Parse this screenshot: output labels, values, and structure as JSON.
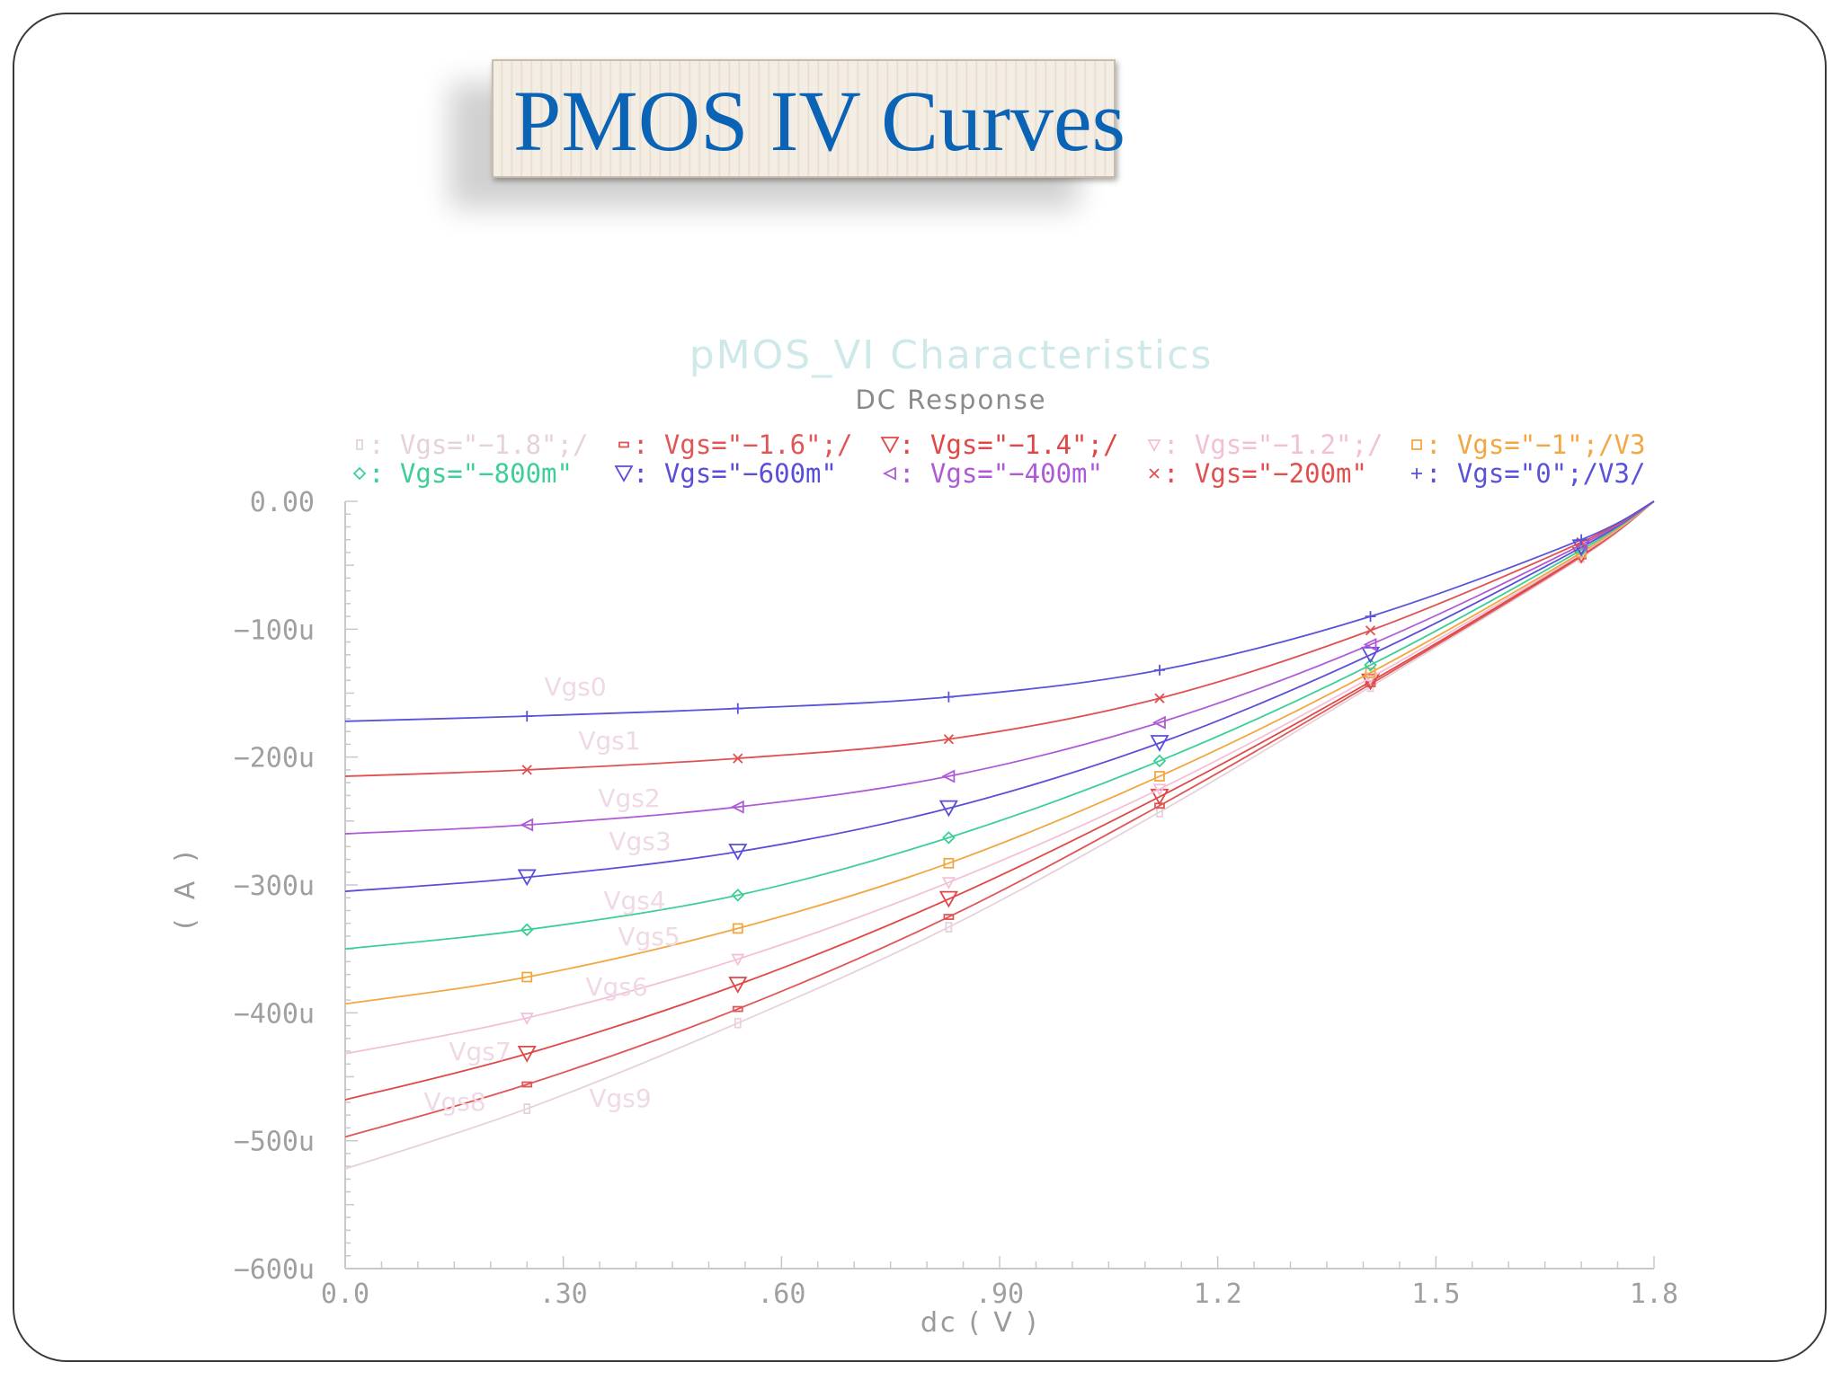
{
  "slide": {
    "title": "PMOS IV Curves"
  },
  "chart_data": {
    "type": "line",
    "title": "pMOS_VI Characteristics",
    "subtitle": "DC Response",
    "xlabel": "dc ( V )",
    "ylabel": "( A )",
    "xlim": [
      0,
      1.8
    ],
    "ylim": [
      -0.0006,
      0
    ],
    "x_ticks": [
      0,
      0.3,
      0.6,
      0.9,
      1.2,
      1.5,
      1.8
    ],
    "x_tick_labels": [
      "0.0",
      ".30",
      ".60",
      ".90",
      "1.2",
      "1.5",
      "1.8"
    ],
    "y_ticks": [
      0,
      -0.0001,
      -0.0002,
      -0.0003,
      -0.0004,
      -0.0005,
      -0.0006
    ],
    "y_tick_labels": [
      "0.00",
      "−100u",
      "−200u",
      "−300u",
      "−400u",
      "−500u",
      "−600u"
    ],
    "marker_x": [
      0.25,
      0.54,
      0.83,
      1.12,
      1.41,
      1.7
    ],
    "x": [
      0,
      0.25,
      0.54,
      0.83,
      1.12,
      1.41,
      1.7,
      1.8
    ],
    "series": [
      {
        "name": "Vgs=\"−1.8\";/",
        "curve_label": "Vgs9",
        "color": "#e6d2d8",
        "marker": "box",
        "values": [
          -0.000522,
          -0.000475,
          -0.000408,
          -0.000333,
          -0.000243,
          -0.000145,
          -4.4e-05,
          0
        ]
      },
      {
        "name": "Vgs=\"−1.6\";/",
        "curve_label": "Vgs8",
        "color": "#e05656",
        "marker": "dash",
        "values": [
          -0.000497,
          -0.000456,
          -0.000397,
          -0.000325,
          -0.000238,
          -0.000143,
          -4.3e-05,
          0
        ]
      },
      {
        "name": "Vgs=\"−1.4\";/",
        "curve_label": "Vgs7",
        "color": "#e04848",
        "marker": "tri-down",
        "values": [
          -0.000468,
          -0.000432,
          -0.000378,
          -0.000311,
          -0.000231,
          -0.000141,
          -4.2e-05,
          0
        ]
      },
      {
        "name": "Vgs=\"−1.2\";/",
        "curve_label": "Vgs6",
        "color": "#f4c0d8",
        "marker": "tri-small",
        "values": [
          -0.000432,
          -0.000404,
          -0.000358,
          -0.000298,
          -0.000225,
          -0.000138,
          -4.1e-05,
          0
        ]
      },
      {
        "name": "Vgs=\"−1\";/V3",
        "curve_label": "Vgs5",
        "color": "#f2a742",
        "marker": "square",
        "values": [
          -0.000393,
          -0.000372,
          -0.000334,
          -0.000283,
          -0.000215,
          -0.000134,
          -4e-05,
          0
        ]
      },
      {
        "name": "Vgs=\"−800m\"",
        "curve_label": "Vgs4",
        "color": "#3ccf96",
        "marker": "diamond",
        "values": [
          -0.00035,
          -0.000335,
          -0.000308,
          -0.000263,
          -0.000203,
          -0.000128,
          -3.8e-05,
          0
        ]
      },
      {
        "name": "Vgs=\"−600m\"",
        "curve_label": "Vgs3",
        "color": "#5a4ed8",
        "marker": "tri-down",
        "values": [
          -0.000305,
          -0.000294,
          -0.000274,
          -0.00024,
          -0.000189,
          -0.00012,
          -3.6e-05,
          0
        ]
      },
      {
        "name": "Vgs=\"−400m\"",
        "curve_label": "Vgs2",
        "color": "#ae5ad6",
        "marker": "tri-left",
        "values": [
          -0.00026,
          -0.000253,
          -0.000239,
          -0.000215,
          -0.000173,
          -0.000112,
          -3.4e-05,
          0
        ]
      },
      {
        "name": "Vgs=\"−200m\"",
        "curve_label": "Vgs1",
        "color": "#e05050",
        "marker": "x",
        "values": [
          -0.000215,
          -0.00021,
          -0.000201,
          -0.000186,
          -0.000154,
          -0.000101,
          -3.2e-05,
          0
        ]
      },
      {
        "name": "Vgs=\"0\";/V3/",
        "curve_label": "Vgs0",
        "color": "#5a52d8",
        "marker": "plus",
        "values": [
          -0.000172,
          -0.000168,
          -0.000162,
          -0.000153,
          -0.000132,
          -9e-05,
          -3e-05,
          0
        ]
      }
    ],
    "legend_rows": [
      [
        0,
        1,
        2,
        3,
        4
      ],
      [
        5,
        6,
        7,
        8,
        9
      ]
    ],
    "grid": false,
    "legend_position": "top"
  }
}
